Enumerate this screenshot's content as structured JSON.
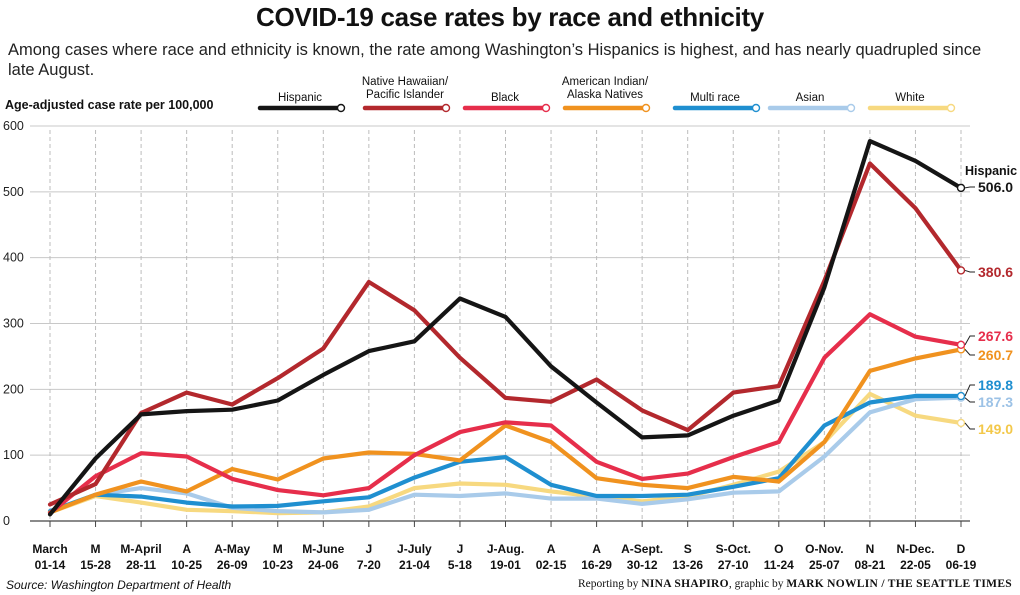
{
  "title": "COVID-19 case rates by race and ethnicity",
  "subtitle": "Among cases where race and ethnicity is known, the rate among Washington’s Hispanics is highest, and has nearly quadrupled since late August.",
  "source": "Source: Washington Department of Health",
  "credit": {
    "prefix": "Reporting by ",
    "reporter": "NINA SHAPIRO",
    "middle": ", graphic by ",
    "artist": "MARK NOWLIN / THE SEATTLE TIMES"
  },
  "chart_data": {
    "type": "line",
    "title": "COVID-19 case rates by race and ethnicity",
    "ylabel": "Age-adjusted case rate per 100,000",
    "xlabel": "",
    "ylim": [
      0,
      600
    ],
    "yticks": [
      0,
      100,
      200,
      300,
      400,
      500,
      600
    ],
    "grid": "horizontal",
    "legend_placement": "top",
    "categories": [
      [
        "March",
        "01-14"
      ],
      [
        "M",
        "15-28"
      ],
      [
        "M-April",
        "28-11"
      ],
      [
        "A",
        "10-25"
      ],
      [
        "A-May",
        "26-09"
      ],
      [
        "M",
        "10-23"
      ],
      [
        "M-June",
        "24-06"
      ],
      [
        "J",
        "7-20"
      ],
      [
        "J-July",
        "21-04"
      ],
      [
        "J",
        "5-18"
      ],
      [
        "J-Aug.",
        "19-01"
      ],
      [
        "A",
        "02-15"
      ],
      [
        "A",
        "16-29"
      ],
      [
        "A-Sept.",
        "30-12"
      ],
      [
        "S",
        "13-26"
      ],
      [
        "S-Oct.",
        "27-10"
      ],
      [
        "O",
        "11-24"
      ],
      [
        "O-Nov.",
        "25-07"
      ],
      [
        "N",
        "08-21"
      ],
      [
        "N-Dec.",
        "22-05"
      ],
      [
        "D",
        "06-19"
      ]
    ],
    "series": [
      {
        "name": "White",
        "color": "#f7d980",
        "values": [
          13,
          38,
          28,
          17,
          15,
          12,
          13,
          22,
          50,
          57,
          55,
          45,
          37,
          30,
          37,
          55,
          75,
          120,
          193,
          160,
          149.0
        ],
        "end_label": "149.0"
      },
      {
        "name": "Asian",
        "color": "#a9cbea",
        "values": [
          14,
          40,
          50,
          42,
          20,
          15,
          13,
          17,
          40,
          38,
          42,
          34,
          34,
          26,
          33,
          43,
          45,
          98,
          165,
          185,
          187.3
        ],
        "end_label": "187.3"
      },
      {
        "name": "Multi race",
        "color": "#1f8fd0",
        "values": [
          15,
          40,
          37,
          28,
          22,
          23,
          30,
          36,
          66,
          90,
          97,
          55,
          38,
          38,
          40,
          52,
          65,
          145,
          180,
          190,
          189.8
        ],
        "end_label": "189.8"
      },
      {
        "name": "American Indian/\nAlaska Natives",
        "color": "#f0921f",
        "values": [
          13,
          40,
          60,
          45,
          79,
          63,
          95,
          104,
          102,
          92,
          145,
          120,
          65,
          55,
          50,
          67,
          60,
          120,
          228,
          247,
          260.7
        ],
        "end_label": "260.7"
      },
      {
        "name": "Black",
        "color": "#e62e4b",
        "values": [
          12,
          68,
          103,
          98,
          64,
          47,
          39,
          50,
          100,
          135,
          150,
          145,
          90,
          64,
          72,
          97,
          120,
          248,
          314,
          280,
          267.6
        ],
        "end_label": "267.6"
      },
      {
        "name": "Native Hawaiian/\nPacific Islander",
        "color": "#b3282d",
        "values": [
          25,
          56,
          164,
          195,
          177,
          217,
          262,
          363,
          320,
          248,
          187,
          181,
          215,
          168,
          138,
          195,
          205,
          365,
          543,
          475,
          380.6
        ],
        "end_label": "380.6"
      },
      {
        "name": "Hispanic",
        "color": "#151515",
        "values": [
          10,
          95,
          162,
          167,
          169,
          183,
          222,
          258,
          273,
          338,
          310,
          235,
          180,
          127,
          130,
          160,
          183,
          355,
          577,
          547,
          506.0
        ],
        "end_label": "506.0"
      }
    ],
    "legend_order": [
      "Hispanic",
      "Native Hawaiian/\nPacific Islander",
      "Black",
      "American Indian/\nAlaska Natives",
      "Multi race",
      "Asian",
      "White"
    ],
    "annotation": "Hispanic"
  }
}
